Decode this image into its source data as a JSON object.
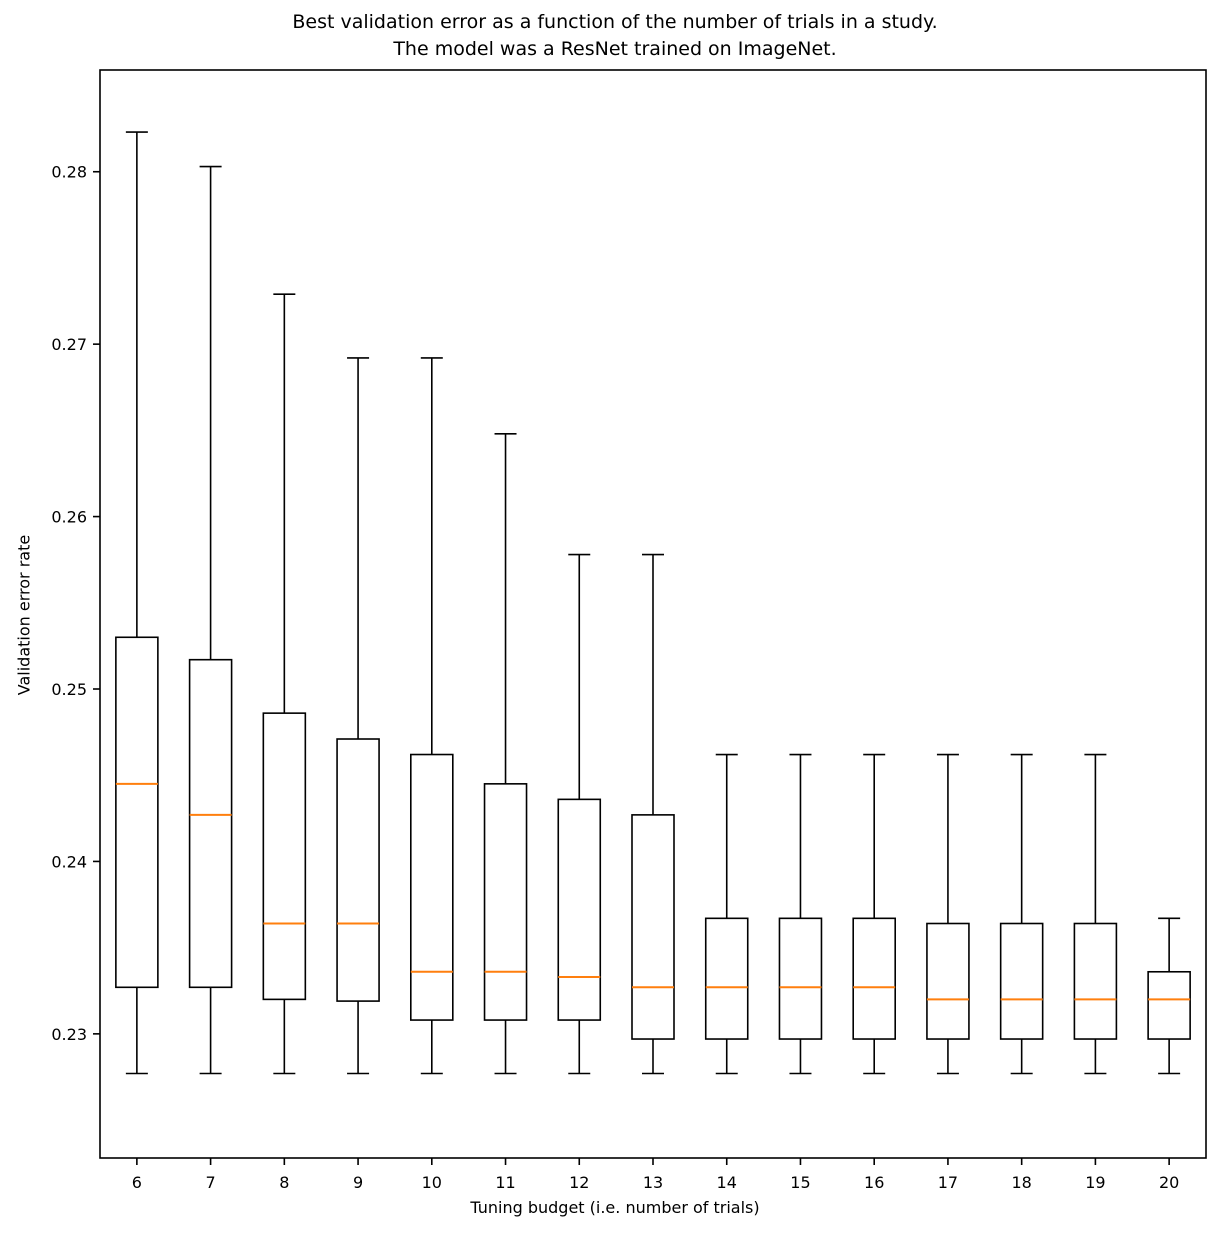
{
  "chart_data": {
    "type": "boxplot",
    "title_line1": "Best validation error as a function of the number of trials in a study.",
    "title_line2": "The model was a ResNet trained on ImageNet.",
    "xlabel": "Tuning budget (i.e. number of trials)",
    "ylabel": "Validation error rate",
    "categories": [
      6,
      7,
      8,
      9,
      10,
      11,
      12,
      13,
      14,
      15,
      16,
      17,
      18,
      19,
      20
    ],
    "yticks": [
      0.23,
      0.24,
      0.25,
      0.26,
      0.27,
      0.28
    ],
    "ylim": [
      0.2228,
      0.2859
    ],
    "grid": false,
    "legend": "none",
    "box_color": "#000000",
    "median_color": "#ff7f0e",
    "boxes": [
      {
        "category": 6,
        "whislo": 0.2277,
        "q1": 0.2327,
        "med": 0.2445,
        "q3": 0.253,
        "whishi": 0.2823
      },
      {
        "category": 7,
        "whislo": 0.2277,
        "q1": 0.2327,
        "med": 0.2427,
        "q3": 0.2517,
        "whishi": 0.2803
      },
      {
        "category": 8,
        "whislo": 0.2277,
        "q1": 0.232,
        "med": 0.2364,
        "q3": 0.2486,
        "whishi": 0.2729
      },
      {
        "category": 9,
        "whislo": 0.2277,
        "q1": 0.2319,
        "med": 0.2364,
        "q3": 0.2471,
        "whishi": 0.2692
      },
      {
        "category": 10,
        "whislo": 0.2277,
        "q1": 0.2308,
        "med": 0.2336,
        "q3": 0.2462,
        "whishi": 0.2692
      },
      {
        "category": 11,
        "whislo": 0.2277,
        "q1": 0.2308,
        "med": 0.2336,
        "q3": 0.2445,
        "whishi": 0.2648
      },
      {
        "category": 12,
        "whislo": 0.2277,
        "q1": 0.2308,
        "med": 0.2333,
        "q3": 0.2436,
        "whishi": 0.2578
      },
      {
        "category": 13,
        "whislo": 0.2277,
        "q1": 0.2297,
        "med": 0.2327,
        "q3": 0.2427,
        "whishi": 0.2578
      },
      {
        "category": 14,
        "whislo": 0.2277,
        "q1": 0.2297,
        "med": 0.2327,
        "q3": 0.2367,
        "whishi": 0.2462
      },
      {
        "category": 15,
        "whislo": 0.2277,
        "q1": 0.2297,
        "med": 0.2327,
        "q3": 0.2367,
        "whishi": 0.2462
      },
      {
        "category": 16,
        "whislo": 0.2277,
        "q1": 0.2297,
        "med": 0.2327,
        "q3": 0.2367,
        "whishi": 0.2462
      },
      {
        "category": 17,
        "whislo": 0.2277,
        "q1": 0.2297,
        "med": 0.232,
        "q3": 0.2364,
        "whishi": 0.2462
      },
      {
        "category": 18,
        "whislo": 0.2277,
        "q1": 0.2297,
        "med": 0.232,
        "q3": 0.2364,
        "whishi": 0.2462
      },
      {
        "category": 19,
        "whislo": 0.2277,
        "q1": 0.2297,
        "med": 0.232,
        "q3": 0.2364,
        "whishi": 0.2462
      },
      {
        "category": 20,
        "whislo": 0.2277,
        "q1": 0.2297,
        "med": 0.232,
        "q3": 0.2336,
        "whishi": 0.2367
      }
    ]
  }
}
